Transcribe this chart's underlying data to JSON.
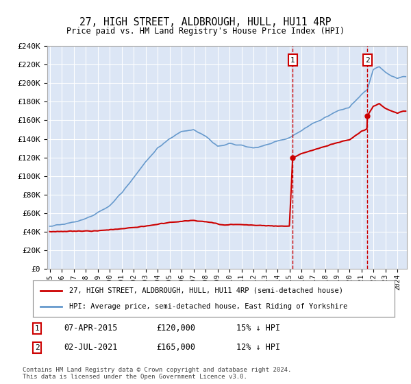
{
  "title": "27, HIGH STREET, ALDBROUGH, HULL, HU11 4RP",
  "subtitle": "Price paid vs. HM Land Registry's House Price Index (HPI)",
  "ylim": [
    0,
    240000
  ],
  "yticks": [
    0,
    20000,
    40000,
    60000,
    80000,
    100000,
    120000,
    140000,
    160000,
    180000,
    200000,
    220000,
    240000
  ],
  "xlim_start": 1994.8,
  "xlim_end": 2024.8,
  "legend_line1": "27, HIGH STREET, ALDBROUGH, HULL, HU11 4RP (semi-detached house)",
  "legend_line2": "HPI: Average price, semi-detached house, East Riding of Yorkshire",
  "line_color_red": "#cc0000",
  "line_color_blue": "#6699cc",
  "marker1_date": "07-APR-2015",
  "marker1_price": "£120,000",
  "marker1_hpi": "15% ↓ HPI",
  "marker1_x": 2015.27,
  "marker1_y": 120000,
  "marker2_date": "02-JUL-2021",
  "marker2_price": "£165,000",
  "marker2_hpi": "12% ↓ HPI",
  "marker2_x": 2021.5,
  "marker2_y": 165000,
  "plot_bg": "#dce6f5",
  "grid_color": "#ffffff",
  "footer": "Contains HM Land Registry data © Crown copyright and database right 2024.\nThis data is licensed under the Open Government Licence v3.0."
}
